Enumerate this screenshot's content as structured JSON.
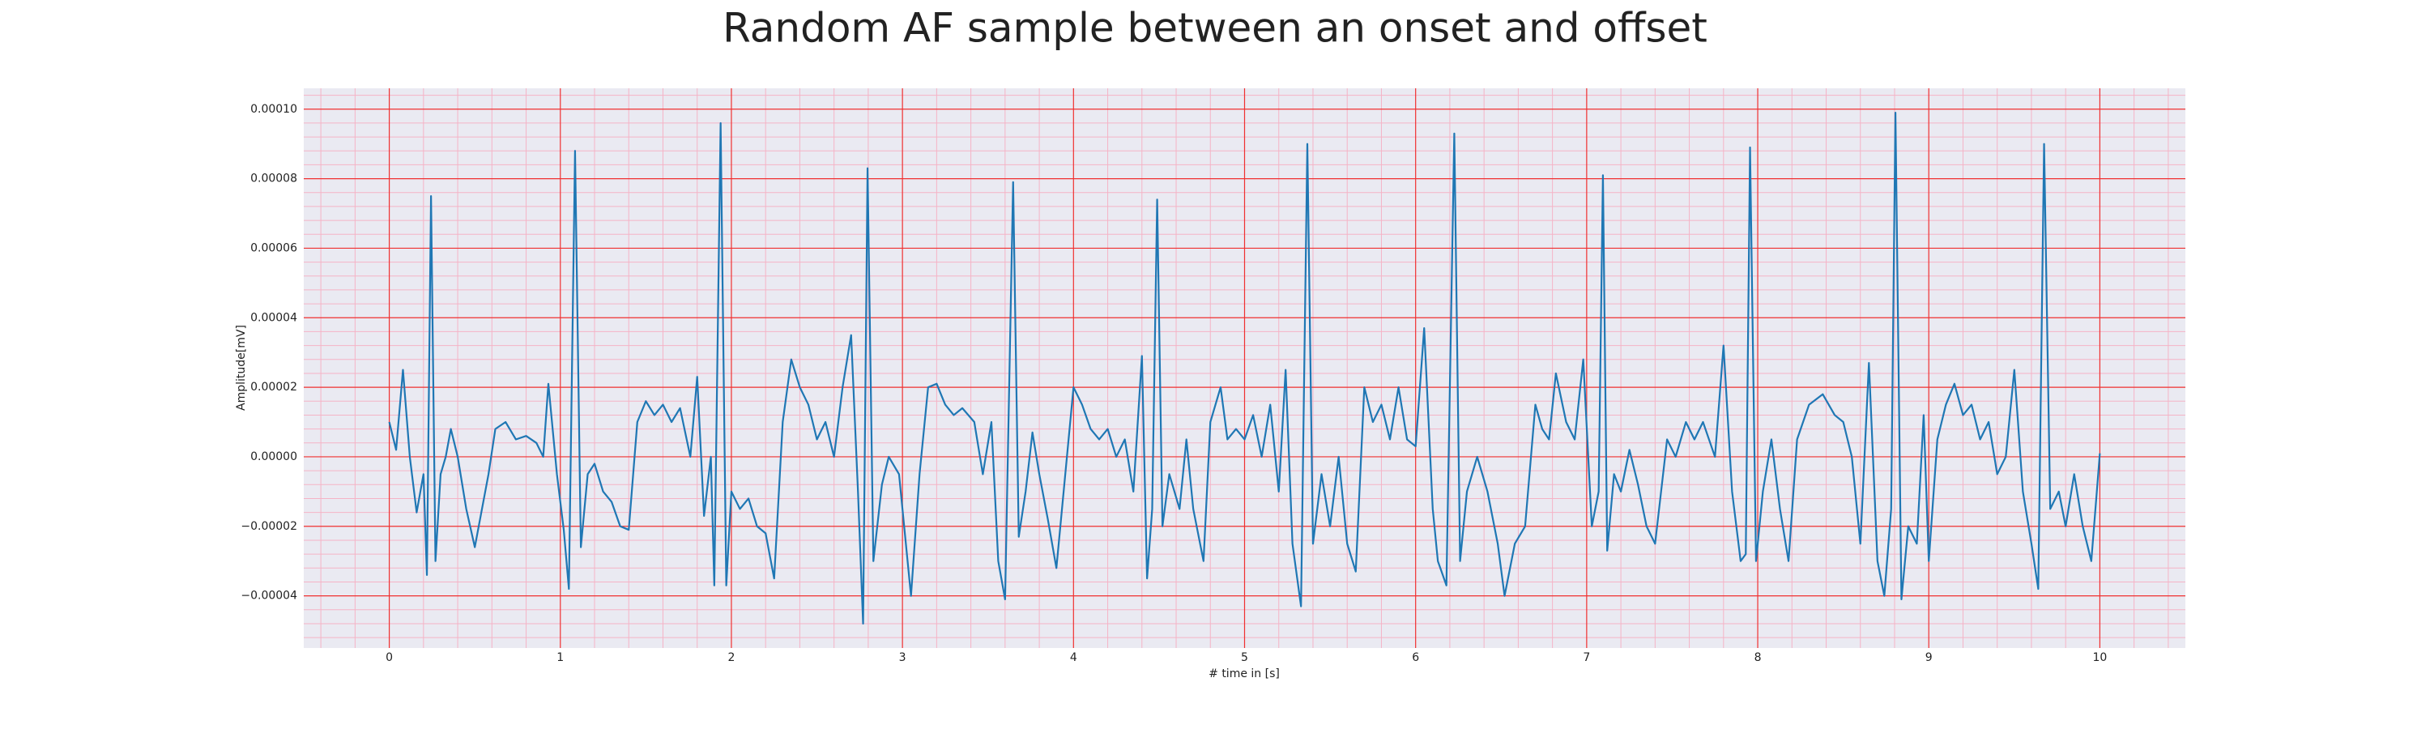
{
  "chart_data": {
    "type": "line",
    "title": "Random AF sample between an onset and offset",
    "x_label": "# time in [s]",
    "y_label": "Amplitude[mV]",
    "color": "#1f77b4",
    "xlim": [
      -0.5,
      10.5
    ],
    "ylim": [
      -5.5e-05,
      0.000106
    ],
    "xticks": [
      0,
      1,
      2,
      3,
      4,
      5,
      6,
      7,
      8,
      9,
      10
    ],
    "yticks": [
      {
        "value": -4e-05,
        "label": "−0.00004"
      },
      {
        "value": -2e-05,
        "label": "−0.00002"
      },
      {
        "value": 0,
        "label": "0.00000"
      },
      {
        "value": 2e-05,
        "label": "0.00002"
      },
      {
        "value": 4e-05,
        "label": "0.00004"
      },
      {
        "value": 6e-05,
        "label": "0.00006"
      },
      {
        "value": 8e-05,
        "label": "0.00008"
      },
      {
        "value": 0.0001,
        "label": "0.00010"
      }
    ],
    "grid": true,
    "grid_color": "#f03030",
    "minor_grid": {
      "x": 5,
      "y": 5,
      "color": "#f5b3c6"
    },
    "background": "#eaeaf2",
    "x": [
      0,
      0.04,
      0.08,
      0.12,
      0.16,
      0.2,
      0.22,
      0.244,
      0.27,
      0.3,
      0.33,
      0.36,
      0.4,
      0.45,
      0.5,
      0.58,
      0.62,
      0.68,
      0.74,
      0.8,
      0.86,
      0.9,
      0.93,
      0.98,
      1.02,
      1.05,
      1.086,
      1.12,
      1.16,
      1.2,
      1.25,
      1.3,
      1.35,
      1.4,
      1.45,
      1.5,
      1.55,
      1.6,
      1.65,
      1.7,
      1.76,
      1.8,
      1.84,
      1.88,
      1.9,
      1.937,
      1.97,
      2.0,
      2.05,
      2.1,
      2.15,
      2.2,
      2.25,
      2.3,
      2.35,
      2.4,
      2.45,
      2.5,
      2.55,
      2.6,
      2.65,
      2.7,
      2.74,
      2.77,
      2.796,
      2.83,
      2.88,
      2.92,
      2.98,
      3.05,
      3.1,
      3.15,
      3.2,
      3.25,
      3.3,
      3.35,
      3.42,
      3.47,
      3.52,
      3.56,
      3.6,
      3.647,
      3.68,
      3.72,
      3.76,
      3.8,
      3.85,
      3.9,
      4.0,
      4.05,
      4.1,
      4.15,
      4.2,
      4.25,
      4.3,
      4.35,
      4.4,
      4.43,
      4.46,
      4.489,
      4.52,
      4.56,
      4.62,
      4.66,
      4.7,
      4.76,
      4.8,
      4.86,
      4.9,
      4.95,
      5.0,
      5.05,
      5.1,
      5.15,
      5.2,
      5.24,
      5.28,
      5.33,
      5.367,
      5.4,
      5.45,
      5.5,
      5.55,
      5.6,
      5.65,
      5.7,
      5.75,
      5.8,
      5.85,
      5.9,
      5.95,
      6.0,
      6.05,
      6.1,
      6.13,
      6.18,
      6.226,
      6.26,
      6.3,
      6.36,
      6.42,
      6.48,
      6.52,
      6.58,
      6.64,
      6.7,
      6.74,
      6.78,
      6.82,
      6.88,
      6.93,
      6.98,
      7.03,
      7.07,
      7.095,
      7.12,
      7.16,
      7.2,
      7.25,
      7.3,
      7.35,
      7.4,
      7.47,
      7.52,
      7.58,
      7.63,
      7.68,
      7.75,
      7.8,
      7.85,
      7.9,
      7.93,
      7.955,
      7.99,
      8.03,
      8.08,
      8.13,
      8.18,
      8.23,
      8.3,
      8.38,
      8.45,
      8.5,
      8.55,
      8.6,
      8.65,
      8.7,
      8.74,
      8.78,
      8.805,
      8.84,
      8.88,
      8.93,
      8.97,
      9.0,
      9.05,
      9.1,
      9.15,
      9.2,
      9.25,
      9.3,
      9.35,
      9.4,
      9.45,
      9.5,
      9.55,
      9.6,
      9.64,
      9.674,
      9.71,
      9.76,
      9.8,
      9.85,
      9.9,
      9.95,
      10.0
    ],
    "values": [
      1e-05,
      2e-06,
      2.5e-05,
      0,
      -1.6e-05,
      -5e-06,
      -3.4e-05,
      7.5e-05,
      -3e-05,
      -5e-06,
      0,
      8e-06,
      0,
      -1.5e-05,
      -2.6e-05,
      -5e-06,
      8e-06,
      1e-05,
      5e-06,
      6e-06,
      4e-06,
      0,
      2.1e-05,
      -5e-06,
      -2.1e-05,
      -3.8e-05,
      8.8e-05,
      -2.6e-05,
      -5e-06,
      -2e-06,
      -1e-05,
      -1.3e-05,
      -2e-05,
      -2.1e-05,
      1e-05,
      1.6e-05,
      1.2e-05,
      1.5e-05,
      1e-05,
      1.4e-05,
      0,
      2.3e-05,
      -1.7e-05,
      0,
      -3.7e-05,
      9.6e-05,
      -3.7e-05,
      -1e-05,
      -1.5e-05,
      -1.2e-05,
      -2e-05,
      -2.2e-05,
      -3.5e-05,
      1e-05,
      2.8e-05,
      2e-05,
      1.5e-05,
      5e-06,
      1e-05,
      0,
      2e-05,
      3.5e-05,
      -1e-05,
      -4.8e-05,
      8.3e-05,
      -3e-05,
      -8e-06,
      0,
      -5e-06,
      -4e-05,
      -5e-06,
      2e-05,
      2.1e-05,
      1.5e-05,
      1.2e-05,
      1.4e-05,
      1e-05,
      -5e-06,
      1e-05,
      -3e-05,
      -4.1e-05,
      7.9e-05,
      -2.3e-05,
      -1e-05,
      7e-06,
      -5e-06,
      -1.8e-05,
      -3.2e-05,
      2e-05,
      1.5e-05,
      8e-06,
      5e-06,
      8e-06,
      0,
      5e-06,
      -1e-05,
      2.9e-05,
      -3.5e-05,
      -1.5e-05,
      7.4e-05,
      -2e-05,
      -5e-06,
      -1.5e-05,
      5e-06,
      -1.5e-05,
      -3e-05,
      1e-05,
      2e-05,
      5e-06,
      8e-06,
      5e-06,
      1.2e-05,
      0,
      1.5e-05,
      -1e-05,
      2.5e-05,
      -2.5e-05,
      -4.3e-05,
      9e-05,
      -2.5e-05,
      -5e-06,
      -2e-05,
      0,
      -2.5e-05,
      -3.3e-05,
      2e-05,
      1e-05,
      1.5e-05,
      5e-06,
      2e-05,
      5e-06,
      3e-06,
      3.7e-05,
      -1.5e-05,
      -3e-05,
      -3.7e-05,
      9.3e-05,
      -3e-05,
      -1e-05,
      0,
      -1e-05,
      -2.5e-05,
      -4e-05,
      -2.5e-05,
      -2e-05,
      1.5e-05,
      8e-06,
      5e-06,
      2.4e-05,
      1e-05,
      5e-06,
      2.8e-05,
      -2e-05,
      -1e-05,
      8.1e-05,
      -2.7e-05,
      -5e-06,
      -1e-05,
      2e-06,
      -8e-06,
      -2e-05,
      -2.5e-05,
      5e-06,
      0,
      1e-05,
      5e-06,
      1e-05,
      0,
      3.2e-05,
      -1e-05,
      -3e-05,
      -2.8e-05,
      8.9e-05,
      -3e-05,
      -1e-05,
      5e-06,
      -1.5e-05,
      -3e-05,
      5e-06,
      1.5e-05,
      1.8e-05,
      1.2e-05,
      1e-05,
      0,
      -2.5e-05,
      2.7e-05,
      -3e-05,
      -4e-05,
      -1.5e-05,
      9.9e-05,
      -4.1e-05,
      -2e-05,
      -2.5e-05,
      1.2e-05,
      -3e-05,
      5e-06,
      1.5e-05,
      2.1e-05,
      1.2e-05,
      1.5e-05,
      5e-06,
      1e-05,
      -5e-06,
      0,
      2.5e-05,
      -1e-05,
      -2.5e-05,
      -3.8e-05,
      9e-05,
      -1.5e-05,
      -1e-05,
      -2e-05,
      -5e-06,
      -2e-05,
      -3e-05,
      1e-06
    ]
  }
}
